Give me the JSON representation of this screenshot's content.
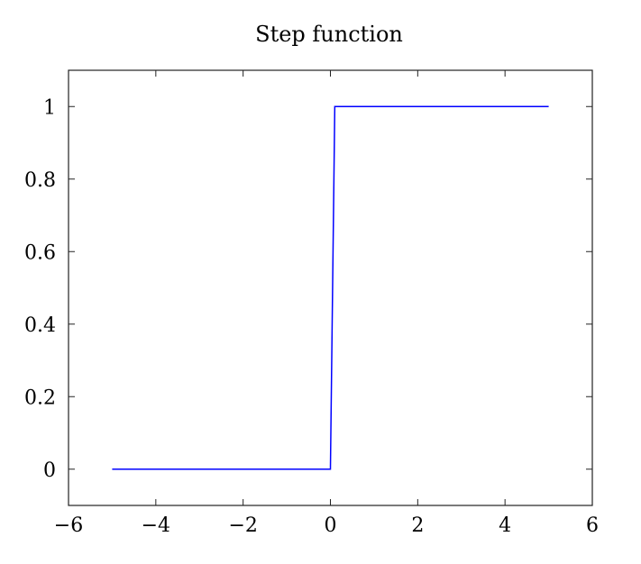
{
  "chart_data": {
    "type": "line",
    "title": "Step function",
    "xlabel": "",
    "ylabel": "",
    "xlim": [
      -6,
      6
    ],
    "ylim": [
      -0.1,
      1.1
    ],
    "xticks": [
      -6,
      -4,
      -2,
      0,
      2,
      4,
      6
    ],
    "yticks": [
      0,
      0.2,
      0.4,
      0.6,
      0.8,
      1
    ],
    "xtick_labels": [
      "−6",
      "−4",
      "−2",
      "0",
      "2",
      "4",
      "6"
    ],
    "ytick_labels": [
      "0",
      "0.2",
      "0.4",
      "0.6",
      "0.8",
      "1"
    ],
    "grid": false,
    "series": [
      {
        "color": "#0000ff",
        "x": [
          -5,
          0,
          0.1,
          5
        ],
        "y": [
          0,
          0,
          1,
          1
        ]
      }
    ]
  }
}
